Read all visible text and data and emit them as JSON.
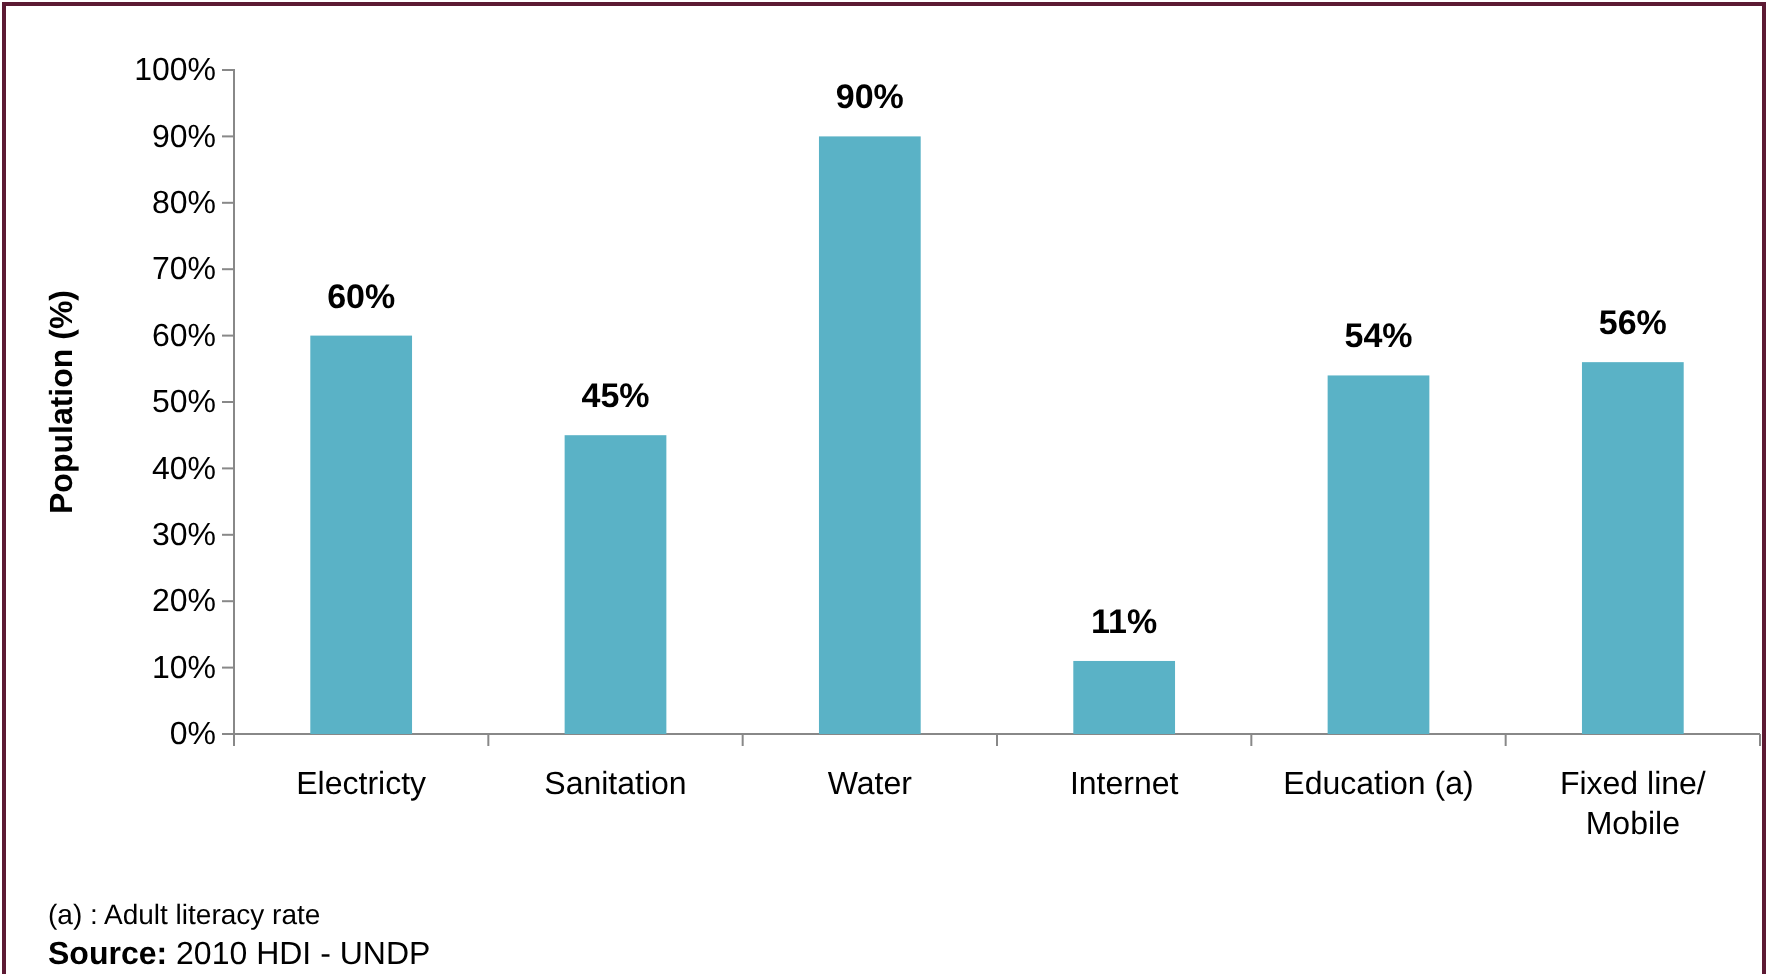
{
  "chart_data": {
    "type": "bar",
    "ylabel": "Population (%)",
    "categories": [
      "Electricty",
      "Sanitation",
      "Water",
      "Internet",
      "Education (a)",
      "Fixed line/ Mobile"
    ],
    "values": [
      60,
      45,
      90,
      11,
      54,
      56
    ],
    "value_labels": [
      "60%",
      "45%",
      "90%",
      "11%",
      "54%",
      "56%"
    ],
    "color": "#5ab2c6",
    "ylim": [
      0,
      100
    ],
    "yticks": [
      {
        "value": 0,
        "label": "0%"
      },
      {
        "value": 10,
        "label": "10%"
      },
      {
        "value": 20,
        "label": "20%"
      },
      {
        "value": 30,
        "label": "30%"
      },
      {
        "value": 40,
        "label": "40%"
      },
      {
        "value": 50,
        "label": "50%"
      },
      {
        "value": 60,
        "label": "60%"
      },
      {
        "value": 70,
        "label": "70%"
      },
      {
        "value": 80,
        "label": "80%"
      },
      {
        "value": 90,
        "label": "90%"
      },
      {
        "value": 100,
        "label": "100%"
      }
    ],
    "grid": false,
    "annotations": [
      "(a) : Adult literacy rate",
      "Source: 2010 HDI  - UNDP"
    ]
  }
}
